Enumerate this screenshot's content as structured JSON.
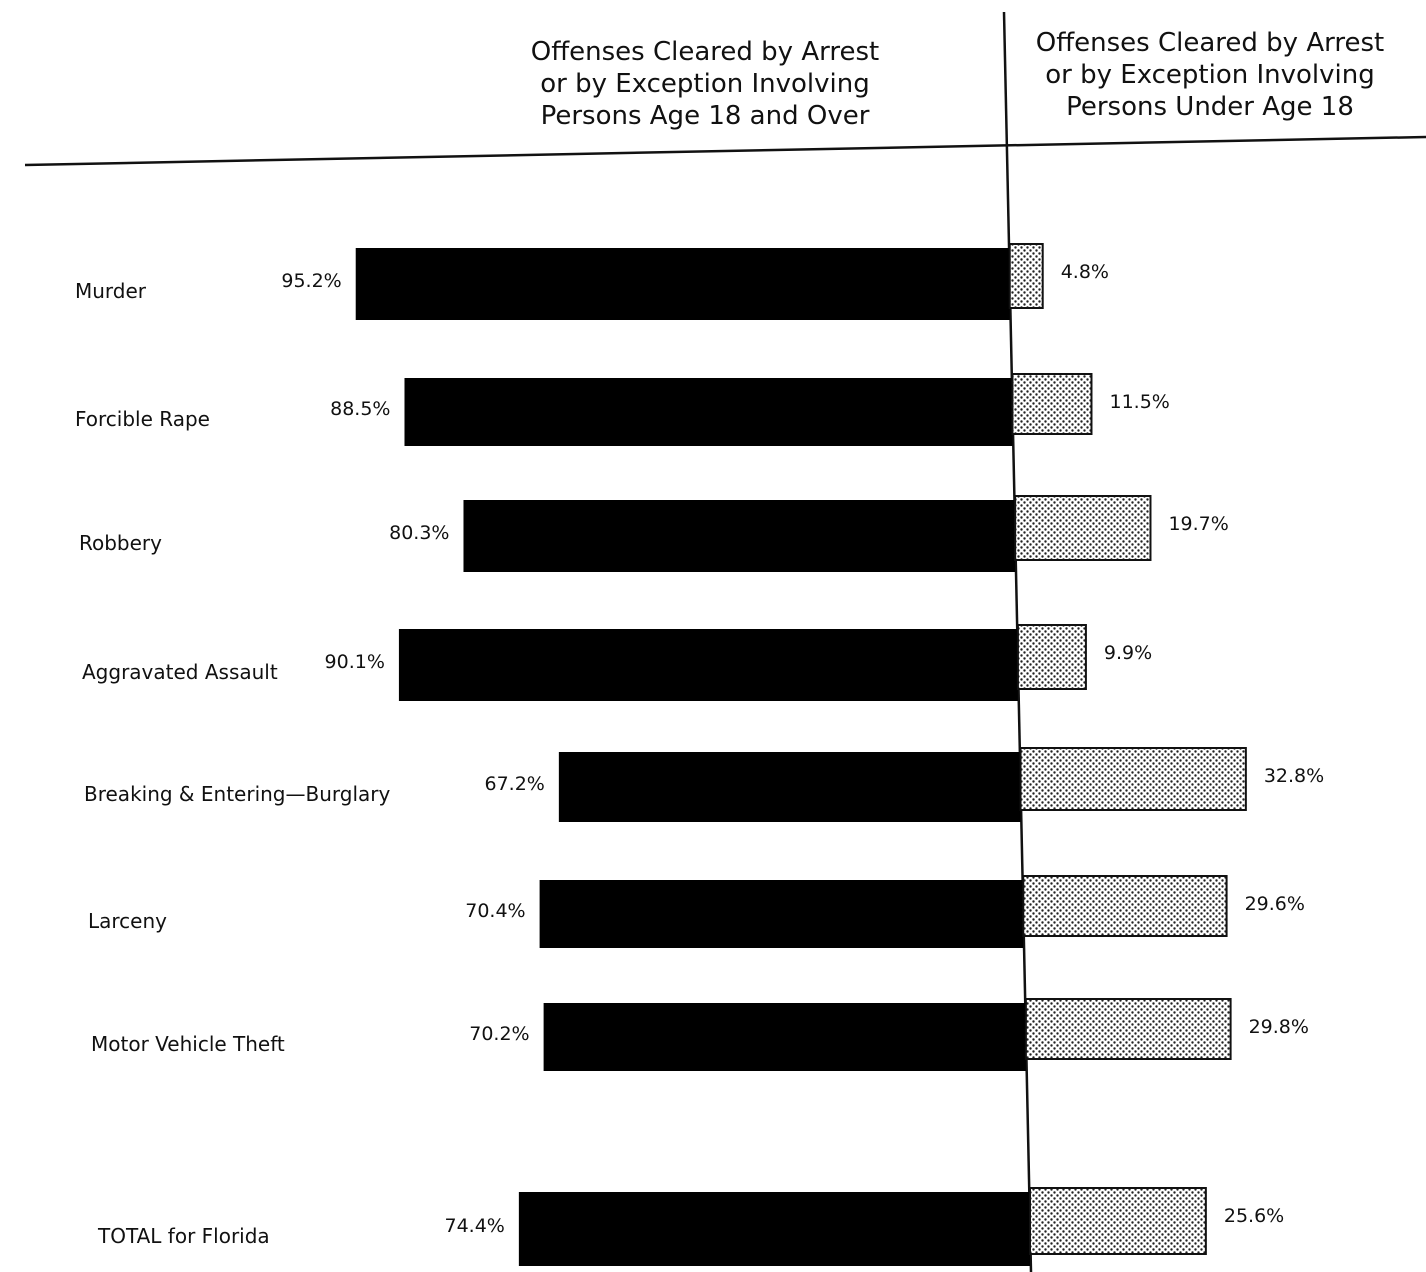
{
  "headers": {
    "left": [
      "Offenses Cleared by Arrest",
      "or by Exception Involving",
      "Persons Age 18 and Over"
    ],
    "right": [
      "Offenses Cleared by Arrest",
      "or by Exception Involving",
      "Persons Under Age 18"
    ]
  },
  "colors": {
    "adult_bar": "#000000",
    "juvenile_bar_pattern": "dotted-crosshatch",
    "juvenile_dot": "#222222",
    "text": "#111111"
  },
  "chart_data": {
    "type": "bar",
    "orientation": "horizontal-diverging",
    "categories": [
      "Murder",
      "Forcible Rape",
      "Robbery",
      "Aggravated Assault",
      "Breaking & Entering—Burglary",
      "Larceny",
      "Motor Vehicle Theft",
      "TOTAL for Florida"
    ],
    "series": [
      {
        "name": "Offenses Cleared by Arrest or by Exception Involving Persons Age 18 and Over",
        "values": [
          95.2,
          88.5,
          80.3,
          90.1,
          67.2,
          70.4,
          70.2,
          74.4
        ],
        "labels": [
          "95.2%",
          "88.5%",
          "80.3%",
          "90.1%",
          "67.2%",
          "70.4%",
          "70.2%",
          "74.4%"
        ]
      },
      {
        "name": "Offenses Cleared by Arrest or by Exception Involving Persons Under Age 18",
        "values": [
          4.8,
          11.5,
          19.7,
          9.9,
          32.8,
          29.6,
          29.8,
          25.6
        ],
        "labels": [
          "4.8%",
          "11.5%",
          "19.7%",
          "9.9%",
          "32.8%",
          "29.6%",
          "29.8%",
          "25.6%"
        ]
      }
    ],
    "unit": "%",
    "xlim": [
      0,
      100
    ],
    "grid": false,
    "legend": "none"
  }
}
